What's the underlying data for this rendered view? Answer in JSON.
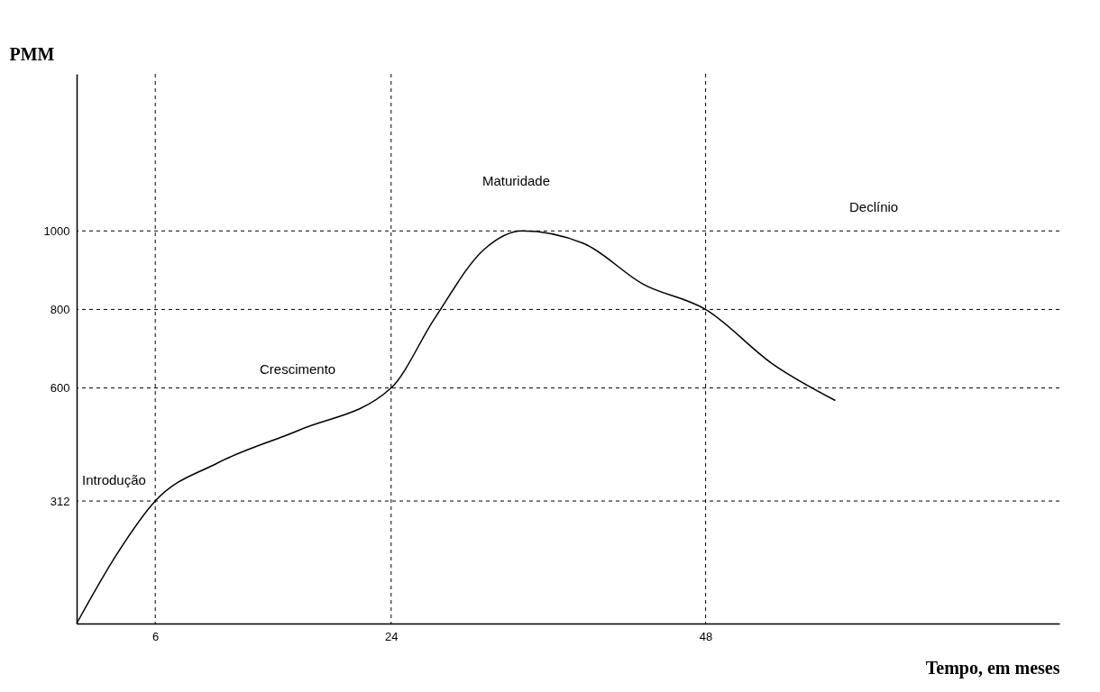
{
  "chart_data": {
    "type": "line",
    "xlabel": "Tempo, em meses",
    "ylabel": "PMM",
    "x": [
      0,
      3,
      6,
      10.7,
      17,
      24,
      27.3,
      31.1,
      34,
      38.7,
      43.2,
      48,
      53.2,
      57.9
    ],
    "series": [
      {
        "color": "#000000",
        "values": [
          0,
          173,
          312,
          408,
          493,
          600,
          776,
          953,
          1000,
          968,
          865,
          800,
          659,
          568
        ]
      }
    ],
    "xlim": [
      0,
      75
    ],
    "ylim": [
      0,
      1400
    ],
    "xticks": [
      6,
      24,
      48
    ],
    "yticks": [
      312,
      600,
      800,
      1000
    ],
    "ref_lines": [
      {
        "axis": "x",
        "value": 6,
        "line_style": "dashed",
        "color": "#000000"
      },
      {
        "axis": "x",
        "value": 24,
        "line_style": "dashed",
        "color": "#000000"
      },
      {
        "axis": "x",
        "value": 48,
        "line_style": "dashed",
        "color": "#000000"
      },
      {
        "axis": "y",
        "value": 312,
        "line_style": "dashed",
        "color": "#000000"
      },
      {
        "axis": "y",
        "value": 600,
        "line_style": "dashed",
        "color": "#000000"
      },
      {
        "axis": "y",
        "value": 800,
        "line_style": "dashed",
        "color": "#000000"
      },
      {
        "axis": "y",
        "value": 1000,
        "line_style": "dashed",
        "color": "#000000"
      }
    ],
    "annotations": [
      "Introdução",
      "Crescimento",
      "Maturidade",
      "Declínio"
    ],
    "grid": false,
    "legend": false,
    "marker": "none",
    "line_style": "solid"
  }
}
